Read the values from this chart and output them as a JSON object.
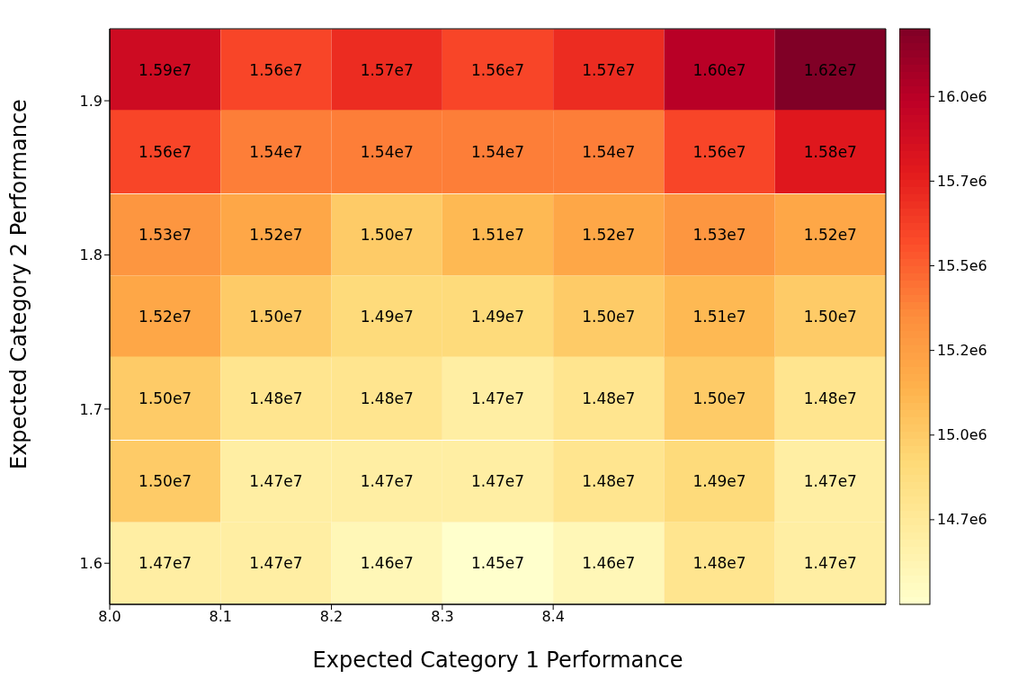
{
  "chart_data": {
    "type": "heatmap",
    "xlabel": "Expected Category 1 Performance",
    "ylabel": "Expected Category 2 Performance",
    "x": [
      8.05,
      8.15,
      8.25,
      8.35,
      8.45,
      8.55,
      8.65
    ],
    "y": [
      1.92,
      1.867,
      1.813,
      1.76,
      1.707,
      1.653,
      1.6
    ],
    "xlim": [
      8.0,
      8.7
    ],
    "xticks": [
      {
        "value": 8,
        "label": "8.0"
      },
      8.1,
      8.2,
      8.3,
      8.4
    ],
    "ylim": [
      1.5733,
      1.9467
    ],
    "yticks": [
      1.6,
      1.7,
      1.8,
      1.9
    ],
    "cells": [
      [
        15900000,
        15600000,
        15700000,
        15600000,
        15700000,
        16000000,
        16200000
      ],
      [
        15600000,
        15400000,
        15400000,
        15400000,
        15400000,
        15600000,
        15800000
      ],
      [
        15300000,
        15200000,
        15000000,
        15100000,
        15200000,
        15300000,
        15200000
      ],
      [
        15200000,
        15000000,
        14900000,
        14900000,
        15000000,
        15100000,
        15000000
      ],
      [
        15000000,
        14800000,
        14800000,
        14700000,
        14800000,
        15000000,
        14800000
      ],
      [
        15000000,
        14700000,
        14700000,
        14700000,
        14800000,
        14900000,
        14700000
      ],
      [
        14700000,
        14700000,
        14600000,
        14500000,
        14600000,
        14800000,
        14700000
      ]
    ],
    "cell_labels": [
      [
        "1.59e7",
        "1.56e7",
        "1.57e7",
        "1.56e7",
        "1.57e7",
        "1.60e7",
        "1.62e7"
      ],
      [
        "1.56e7",
        "1.54e7",
        "1.54e7",
        "1.54e7",
        "1.54e7",
        "1.56e7",
        "1.58e7"
      ],
      [
        "1.53e7",
        "1.52e7",
        "1.50e7",
        "1.51e7",
        "1.52e7",
        "1.53e7",
        "1.52e7"
      ],
      [
        "1.52e7",
        "1.50e7",
        "1.49e7",
        "1.49e7",
        "1.50e7",
        "1.51e7",
        "1.50e7"
      ],
      [
        "1.50e7",
        "1.48e7",
        "1.48e7",
        "1.47e7",
        "1.48e7",
        "1.50e7",
        "1.48e7"
      ],
      [
        "1.50e7",
        "1.47e7",
        "1.47e7",
        "1.47e7",
        "1.48e7",
        "1.49e7",
        "1.47e7"
      ],
      [
        "1.47e7",
        "1.47e7",
        "1.46e7",
        "1.45e7",
        "1.46e7",
        "1.48e7",
        "1.47e7"
      ]
    ],
    "clim": [
      14500000,
      16200000
    ],
    "cticks": [
      {
        "value": 16000000,
        "label": "16.0e6"
      },
      {
        "value": 15750000,
        "label": "15.7e6"
      },
      {
        "value": 15500000,
        "label": "15.5e6"
      },
      {
        "value": 15250000,
        "label": "15.2e6"
      },
      {
        "value": 15000000,
        "label": "15.0e6"
      },
      {
        "value": 14750000,
        "label": "14.7e6"
      }
    ]
  }
}
